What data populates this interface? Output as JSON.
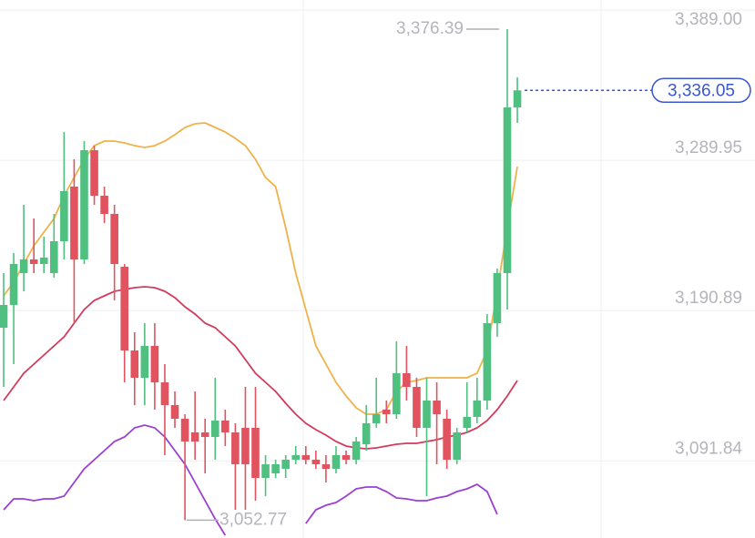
{
  "chart_data": {
    "type": "candlestick",
    "up_color": "#4fc07f",
    "down_color": "#e0535f",
    "open": [
      3179.6,
      3194.6,
      3215.6,
      3224.6,
      3221.6,
      3215.6,
      3236.6,
      3272.6,
      3224.6,
      3296.6,
      3266.6,
      3254.6,
      3219.8,
      3164.6,
      3146.6,
      3167.6,
      3143.6,
      3128.6,
      3119.6,
      3110.6,
      3110.6,
      3107.6,
      3118.4,
      3110.6,
      3113.6,
      3113.6,
      3080.6,
      3083.6,
      3086.6,
      3092.6,
      3095.6,
      3092.6,
      3089.6,
      3086.6,
      3095.6,
      3092.6,
      3102.8,
      3116.6,
      3125.6,
      3122.6,
      3149.6,
      3140.6,
      3113.6,
      3131.6,
      3119.6,
      3092.6,
      3113.6,
      3120.8,
      3131.6,
      3182.6,
      3215.6,
      3324.8
    ],
    "high": [
      3215.6,
      3228.8,
      3260.6,
      3251.6,
      3239.6,
      3254.6,
      3308.6,
      3290.6,
      3302.6,
      3299.6,
      3272.6,
      3260.6,
      3221.6,
      3176.6,
      3182.6,
      3182.6,
      3155.6,
      3137.6,
      3122.6,
      3137.6,
      3119.6,
      3146.6,
      3125.6,
      3116.6,
      3140.6,
      3140.6,
      3095.6,
      3092.6,
      3095.6,
      3101.6,
      3101.6,
      3098.6,
      3095.6,
      3101.6,
      3098.6,
      3107.6,
      3128.6,
      3146.6,
      3131.6,
      3170.6,
      3167.6,
      3146.6,
      3146.6,
      3143.6,
      3125.6,
      3113.6,
      3143.6,
      3146.6,
      3188.6,
      3218.6,
      3376.39,
      3344.6
    ],
    "low": [
      3140.6,
      3155.6,
      3203.6,
      3215.6,
      3215.6,
      3212.6,
      3224.6,
      3182.6,
      3221.6,
      3260.6,
      3248.6,
      3197.6,
      3143.6,
      3128.6,
      3128.6,
      3125.6,
      3095.6,
      3113.6,
      3052.77,
      3092.6,
      3083.6,
      3092.6,
      3101.6,
      3059.6,
      3059.6,
      3065.6,
      3068.6,
      3080.6,
      3080.6,
      3089.6,
      3089.6,
      3086.6,
      3077.6,
      3083.6,
      3089.6,
      3089.6,
      3098.6,
      3113.6,
      3116.6,
      3119.6,
      3131.6,
      3107.6,
      3068.6,
      3089.6,
      3086.6,
      3089.6,
      3110.6,
      3116.6,
      3125.6,
      3173.6,
      3191.6,
      3314.6
    ],
    "close": [
      3194.6,
      3221.6,
      3224.6,
      3221.6,
      3225.8,
      3236.6,
      3269.6,
      3224.6,
      3296.6,
      3266.6,
      3254.6,
      3221.6,
      3164.6,
      3146.6,
      3167.6,
      3143.6,
      3128.6,
      3119.6,
      3104.6,
      3104.6,
      3107.6,
      3118.4,
      3110.6,
      3089.6,
      3089.6,
      3080.6,
      3089.6,
      3089.6,
      3092.6,
      3095.6,
      3092.6,
      3089.6,
      3086.6,
      3095.6,
      3092.6,
      3104.6,
      3116.6,
      3122.6,
      3122.6,
      3149.6,
      3140.6,
      3113.6,
      3131.6,
      3122.6,
      3092.6,
      3110.6,
      3120.8,
      3131.6,
      3182.6,
      3215.6,
      3324.8,
      3336.05
    ],
    "overlays": [
      {
        "color": "#efb24a",
        "values": [
          3200.6,
          3209.6,
          3221.6,
          3233.6,
          3242.6,
          3251.6,
          3266.6,
          3278.6,
          3290.6,
          3299.6,
          3302.6,
          3302.6,
          3301.4,
          3299.6,
          3298.4,
          3299.6,
          3302.6,
          3306.8,
          3311.6,
          3314.0,
          3314.6,
          3311.6,
          3308.6,
          3304.4,
          3299.6,
          3290.6,
          3278.6,
          3272.6,
          3245.6,
          3215.6,
          3191.6,
          3167.6,
          3155.6,
          3143.6,
          3134.6,
          3126.8,
          3122.6,
          3122.6,
          3125.6,
          3137.6,
          3143.6,
          3144.8,
          3146.6,
          3146.6,
          3146.6,
          3146.6,
          3146.6,
          3149.6,
          3164.6,
          3203.6,
          3245.6,
          3285.8
        ]
      },
      {
        "color": "#d23b5c",
        "values": [
          3131.6,
          3140.6,
          3149.6,
          3155.6,
          3161.6,
          3167.6,
          3173.6,
          3182.6,
          3191.6,
          3197.6,
          3200.6,
          3203.6,
          3204.8,
          3206.0,
          3206.6,
          3206.0,
          3203.6,
          3199.4,
          3193.4,
          3188.6,
          3182.6,
          3179.6,
          3173.6,
          3167.6,
          3158.6,
          3149.6,
          3143.6,
          3137.6,
          3129.8,
          3122.6,
          3116.6,
          3112.4,
          3108.8,
          3104.6,
          3101.6,
          3100.4,
          3099.8,
          3100.4,
          3101.6,
          3102.8,
          3103.4,
          3103.4,
          3104.6,
          3105.8,
          3107.6,
          3108.8,
          3110.6,
          3113.6,
          3118.4,
          3125.6,
          3134.6,
          3144.8
        ]
      },
      {
        "color": "#9a3fd5",
        "values": [
          3059.6,
          3066.8,
          3066.8,
          3065.6,
          3066.8,
          3066.8,
          3068.6,
          3077.6,
          3086.6,
          3092.6,
          3098.6,
          3104.6,
          3107.6,
          3113.6,
          3115.4,
          3113.6,
          3107.6,
          3098.6,
          3089.6,
          3077.6,
          3065.6,
          3053.6,
          3042.8,
          null,
          null,
          null,
          null,
          null,
          null,
          null,
          3050.6,
          3059.6,
          3062.6,
          3064.4,
          3068.6,
          3073.4,
          3074.6,
          3074.6,
          3071.6,
          3067.4,
          3066.8,
          3065.6,
          3065.6,
          3067.4,
          3068.6,
          3071.6,
          3073.4,
          3076.4,
          3071.6,
          3056.6,
          null,
          null
        ]
      }
    ],
    "ylim": [
      3041.0,
      3395.6
    ],
    "yticks": [
      {
        "value": 3389.0,
        "label": "3,389.00"
      },
      {
        "value": 3289.95,
        "label": "3,289.95"
      },
      {
        "value": 3190.89,
        "label": "3,190.89"
      },
      {
        "value": 3091.84,
        "label": "3,091.84"
      }
    ],
    "grid": true,
    "high_marker": {
      "value": 3376.39,
      "label": "3,376.39"
    },
    "low_marker": {
      "value": 3052.77,
      "label": "3,052.77"
    },
    "last_price": {
      "value": 3336.05,
      "label": "3,336.05",
      "color": "#3a56d0"
    }
  }
}
